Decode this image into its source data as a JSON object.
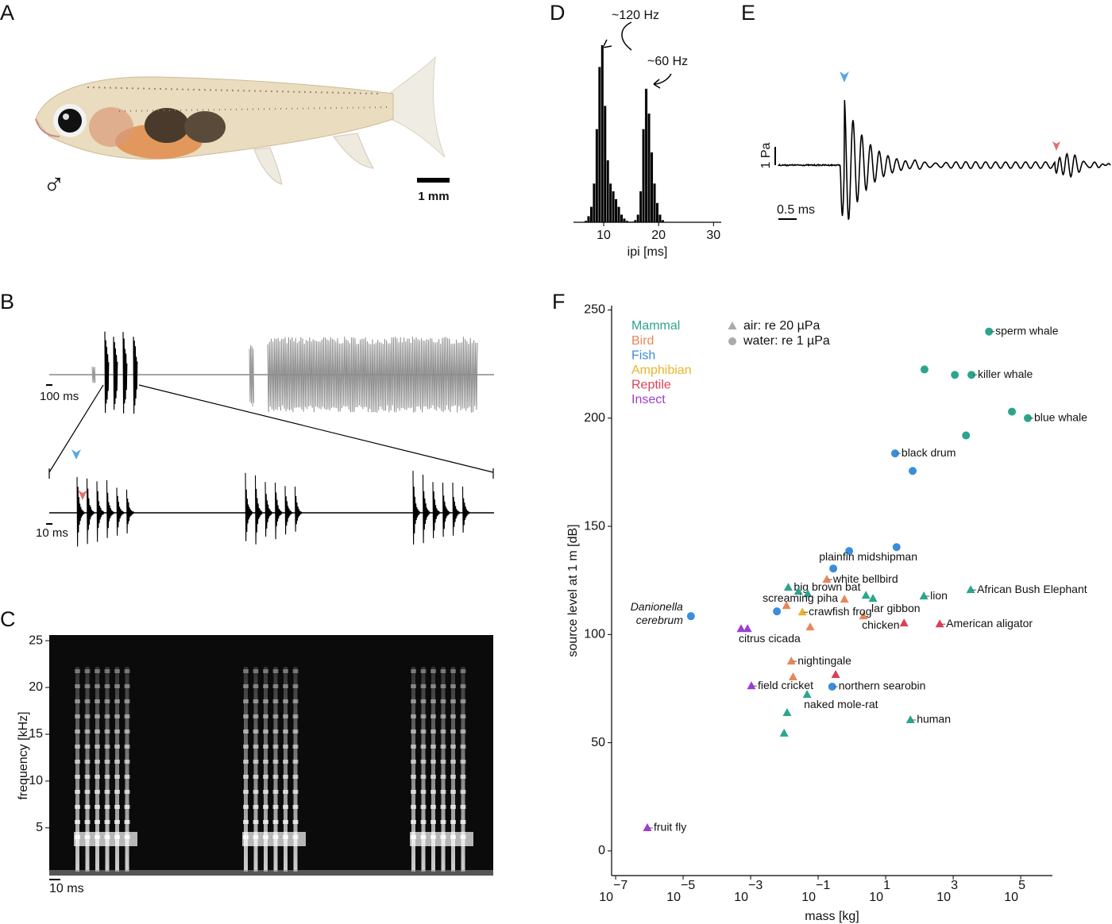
{
  "panel_labels": [
    "A",
    "B",
    "C",
    "D",
    "E",
    "F"
  ],
  "panel_a": {
    "symbol": "♂",
    "scale_bar": "1 mm"
  },
  "panel_b": {
    "scale_bar_top": "100 ms",
    "scale_bar_bottom": "10 ms"
  },
  "panel_e": {
    "scale_bar_amplitude": "1 Pa",
    "scale_bar_time": "0.5 ms"
  },
  "chart_data": [
    {
      "type": "spectrogram",
      "ylabel": "frequency [kHz]",
      "ylim": [
        -0.1,
        25.6
      ],
      "yticks": [
        5,
        10,
        15,
        20,
        25
      ],
      "scale_bar": "10 ms"
    },
    {
      "type": "histogram",
      "xlabel": "ipi [ms]",
      "color": "#000000",
      "bins": [
        6.5,
        7,
        7.5,
        8,
        8.5,
        9,
        9.5,
        10,
        10.5,
        11,
        11.5,
        12,
        12.5,
        13,
        13.5,
        14,
        14.5,
        15,
        15.5,
        16,
        16.5,
        17,
        17.5,
        18,
        18.5,
        19,
        19.5,
        20,
        20.5,
        21
      ],
      "counts": [
        2,
        8,
        20,
        50,
        120,
        200,
        228,
        150,
        80,
        50,
        40,
        30,
        20,
        10,
        5,
        2,
        1,
        1,
        3,
        10,
        40,
        120,
        172,
        140,
        90,
        50,
        25,
        10,
        3
      ],
      "xlim": [
        4.5,
        31.4
      ],
      "ylim": [
        0,
        240
      ],
      "xticks": [
        10,
        20,
        30
      ],
      "annotations": [
        "~120 Hz",
        "~60 Hz"
      ]
    },
    {
      "type": "scatter",
      "xlabel": "mass [kg]",
      "ylabel": "source level at 1 m [dB]",
      "log_x": true,
      "xlim": [
        7.6e-08,
        870000
      ],
      "ylim": [
        -11.4,
        252
      ],
      "xticks": [
        {
          "value": 1e-07,
          "label": "10",
          "exponent": "−7"
        },
        {
          "value": 1e-05,
          "label": "10",
          "exponent": "−5"
        },
        {
          "value": 0.001,
          "label": "10",
          "exponent": "−3"
        },
        {
          "value": 0.1,
          "label": "10",
          "exponent": "−1"
        },
        {
          "value": 10,
          "label": "10",
          "exponent": "1"
        },
        {
          "value": 1000,
          "label": "10",
          "exponent": "3"
        },
        {
          "value": 100000,
          "label": "10",
          "exponent": "5"
        }
      ],
      "yticks": [
        0,
        50,
        100,
        150,
        200,
        250
      ],
      "series": [
        {
          "name": "Mammal",
          "color": "#2ca58d",
          "x": [
            11500,
            141,
            1120,
            3470,
            55000,
            162000,
            2400,
            0.013,
            0.026,
            0.049,
            2.6,
            4.2,
            135,
            3300,
            0.047,
            0.012,
            0.0098,
            54
          ],
          "y": [
            240,
            222.5,
            220,
            220,
            203,
            200,
            192,
            121.7,
            119.9,
            118.8,
            118,
            116.6,
            117.7,
            120.6,
            72.2,
            63.8,
            54.3,
            60.5
          ],
          "markers": [
            "circle",
            "circle",
            "circle",
            "circle",
            "circle",
            "circle",
            "circle",
            "triangle",
            "triangle",
            "triangle",
            "triangle",
            "triangle",
            "triangle",
            "triangle",
            "triangle",
            "triangle",
            "triangle",
            "triangle"
          ],
          "labels": [
            "sperm whale",
            null,
            null,
            "killer whale",
            null,
            "blue whale",
            null,
            "big brown bat",
            null,
            null,
            null,
            "lar gibbon",
            "lion",
            "African Bush Elephant",
            "naked mole-rat",
            null,
            null,
            "human"
          ]
        },
        {
          "name": "Bird",
          "color": "#e8875a",
          "x": [
            0.18,
            0.6,
            0.058,
            2.2,
            0.016,
            0.018,
            0.0115
          ],
          "y": [
            125.4,
            116.2,
            103.4,
            108.5,
            87.6,
            80.3,
            113.3
          ],
          "markers": [
            "triangle",
            "triangle",
            "triangle",
            "triangle",
            "triangle",
            "triangle",
            "triangle"
          ],
          "labels": [
            "white bellbird",
            null,
            null,
            "chicken",
            "nightingale",
            null,
            "screaming piha"
          ]
        },
        {
          "name": "Fish",
          "color": "#3a8ddb",
          "x": [
            19,
            63,
            0.83,
            21,
            0.28,
            0.006,
            1.7e-05,
            0.26
          ],
          "y": [
            183.7,
            175.6,
            138.6,
            140.4,
            130.5,
            110.7,
            108.5,
            75.9
          ],
          "markers": [
            "circle",
            "circle",
            "circle",
            "circle",
            "circle",
            "circle",
            "circle",
            "circle"
          ],
          "labels": [
            "black drum",
            null,
            "plainfin midshipman",
            null,
            null,
            null,
            "Danionella cerebrum",
            "northern searobin"
          ]
        },
        {
          "name": "Amphibian",
          "color": "#e8b52c",
          "x": [
            0.034
          ],
          "y": [
            110.3
          ],
          "markers": [
            "triangle"
          ],
          "labels": [
            "crawfish frog"
          ]
        },
        {
          "name": "Reptile",
          "color": "#d9405a",
          "x": [
            400,
            35,
            0.33
          ],
          "y": [
            104.8,
            105.2,
            81.4
          ],
          "markers": [
            "triangle",
            "triangle",
            "triangle"
          ],
          "labels": [
            "American aligator",
            null,
            null
          ]
        },
        {
          "name": "Insect",
          "color": "#9b3fd1",
          "x": [
            0.00052,
            0.00081,
            0.00105,
            8.7e-07
          ],
          "y": [
            102.6,
            102.6,
            76.2,
            10.6
          ],
          "markers": [
            "triangle",
            "triangle",
            "triangle",
            "triangle"
          ],
          "labels": [
            "citrus cicada",
            null,
            "field cricket",
            "fruit fly"
          ]
        }
      ],
      "marker_legend": [
        {
          "marker": "triangle",
          "label": "air: re 20 µPa"
        },
        {
          "marker": "circle",
          "label": "water: re 1 µPa"
        }
      ]
    }
  ]
}
